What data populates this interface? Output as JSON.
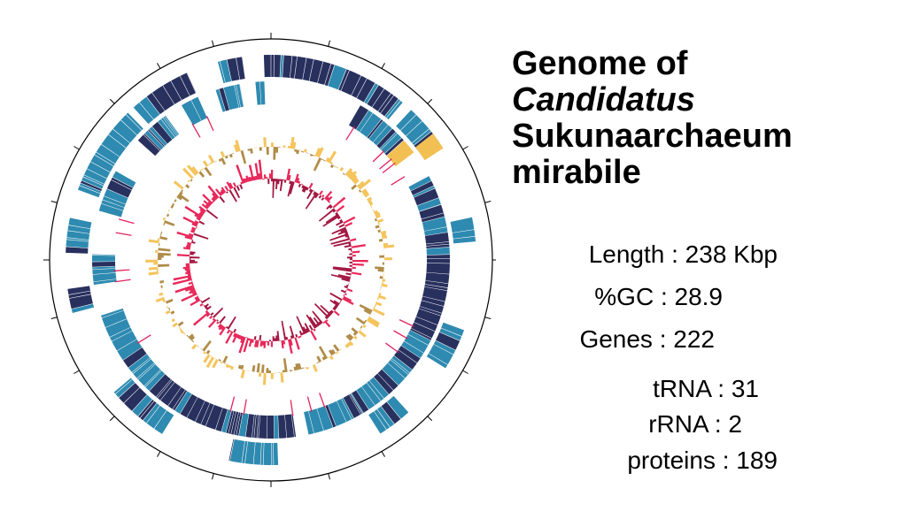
{
  "title": {
    "line1": "Genome of",
    "line2": "Candidatus",
    "line3": "Sukunaarchaeum",
    "line4": "mirabile"
  },
  "stats": {
    "length": "Length : 238 Kbp",
    "gc": "%GC : 28.9",
    "genes": "Genes : 222",
    "trna": "tRNA : 31",
    "rrna": "rRNA : 2",
    "proteins": "proteins : 189"
  },
  "colors": {
    "gene_dark": "#28305e",
    "gene_blue": "#2e8ab0",
    "rna_red": "#e0245e",
    "rrna_yellow": "#f2bf52",
    "gc_content_light": "#f5c45d",
    "gc_content_dark": "#b08c48",
    "gc_skew_light": "#e8285a",
    "gc_skew_dark": "#a31742",
    "outline": "#000000"
  }
}
